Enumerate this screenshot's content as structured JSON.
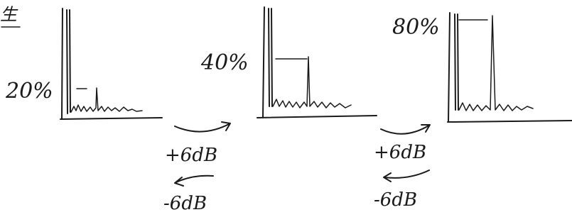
{
  "corner_mark": "生",
  "panels": [
    {
      "label": "20%"
    },
    {
      "label": "40%"
    },
    {
      "label": "80%"
    }
  ],
  "transitions": [
    {
      "forward": "+6dB",
      "backward": "-6dB"
    },
    {
      "forward": "+6dB",
      "backward": "-6dB"
    }
  ]
}
